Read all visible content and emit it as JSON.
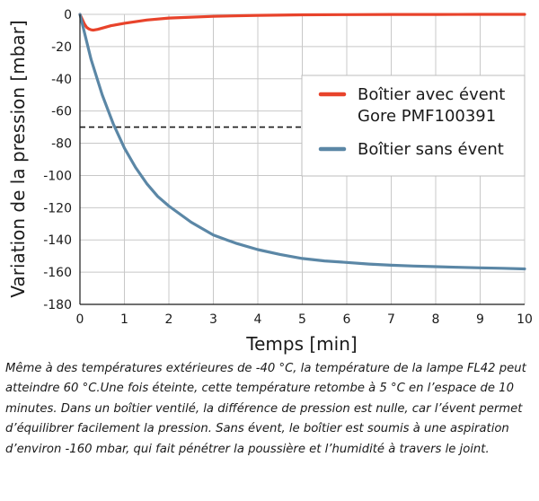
{
  "chart_data": {
    "type": "line",
    "xlabel": "Temps [min]",
    "ylabel": "Variation de la pression [mbar]",
    "xlim": [
      0,
      10
    ],
    "ylim": [
      -180,
      0
    ],
    "x_ticks": [
      "0",
      "1",
      "2",
      "3",
      "4",
      "5",
      "6",
      "7",
      "8",
      "9",
      "10"
    ],
    "y_ticks": [
      "0",
      "-20",
      "-40",
      "-60",
      "-80",
      "-100",
      "-120",
      "-140",
      "-160",
      "-180"
    ],
    "grid": true,
    "legend_position": "right",
    "series": [
      {
        "name_lines": [
          "Boîtier avec évent",
          "Gore PMF100391"
        ],
        "color": "#e8432b",
        "x": [
          0,
          0.05,
          0.1,
          0.15,
          0.2,
          0.25,
          0.3,
          0.4,
          0.5,
          0.7,
          1,
          1.5,
          2,
          3,
          4,
          5,
          6,
          7,
          8,
          9,
          10
        ],
        "y": [
          0,
          -3,
          -6,
          -8,
          -9,
          -9.6,
          -9.8,
          -9.3,
          -8.5,
          -7,
          -5.5,
          -3.5,
          -2.3,
          -1.2,
          -0.6,
          -0.3,
          -0.15,
          -0.08,
          -0.04,
          -0.02,
          0
        ]
      },
      {
        "name_lines": [
          "Boîtier sans évent"
        ],
        "color": "#5b87a6",
        "x": [
          0,
          0.25,
          0.5,
          0.75,
          1,
          1.25,
          1.5,
          1.75,
          2,
          2.5,
          3,
          3.5,
          4,
          4.5,
          5,
          5.5,
          6,
          6.5,
          7,
          7.5,
          8,
          8.5,
          9,
          9.5,
          10
        ],
        "y": [
          0,
          -28,
          -50,
          -68,
          -83,
          -95,
          -105,
          -113,
          -119,
          -129,
          -137,
          -142,
          -146,
          -149,
          -151.5,
          -153,
          -154,
          -155,
          -155.7,
          -156.2,
          -156.6,
          -157,
          -157.3,
          -157.6,
          -158
        ]
      }
    ],
    "annotations": [
      {
        "type": "dashed_hline",
        "y": -70,
        "x_from": 0,
        "x_to": 5,
        "color": "#1a1a1a"
      }
    ]
  },
  "caption": "Même à des températures extérieures de -40 °C, la température de la lampe FL42 peut atteindre 60 °C.Une fois éteinte, cette température retombe à 5 °C en l’espace de 10 minutes. Dans un boîtier ventilé, la différence de pression est nulle, car l’évent permet d’équilibrer facilement la pression. Sans évent, le boîtier est soumis à une aspiration d’environ -160 mbar, qui fait pénétrer la poussière et l’humidité à travers le joint."
}
